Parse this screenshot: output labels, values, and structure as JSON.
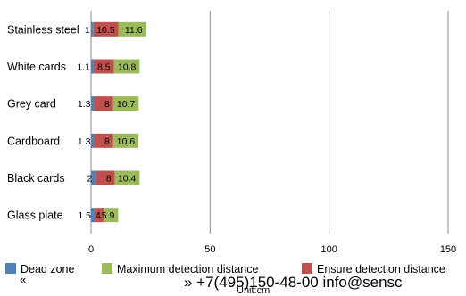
{
  "chart_data": {
    "type": "bar",
    "orientation": "horizontal",
    "stacked": true,
    "categories": [
      "Stainless steel",
      "White cards",
      "Grey card",
      "Cardboard",
      "Black cards",
      "Glass plate"
    ],
    "series": [
      {
        "name": "Dead zone",
        "values": [
          1,
          1.1,
          1.3,
          1.3,
          2,
          1.5
        ],
        "labels": [
          "1",
          "1.1",
          "1.3",
          "1.3",
          "2",
          "1.5"
        ],
        "color": "#4f81bd"
      },
      {
        "name": "Ensure detection distance",
        "values": [
          10.5,
          8.5,
          8,
          8,
          8,
          4
        ],
        "labels": [
          "10.5",
          "8.5",
          "8",
          "8",
          "8",
          "4"
        ],
        "color": "#c0504d"
      },
      {
        "name": "Maximum detection distance",
        "values": [
          11.6,
          10.8,
          10.7,
          10.6,
          10.4,
          5.9
        ],
        "labels": [
          "11.6",
          "10.8",
          "10.7",
          "10.6",
          "10.4",
          "5.9"
        ],
        "color": "#9bbb59"
      }
    ],
    "xlim": [
      0,
      150
    ],
    "xticks": [
      "0",
      "50",
      "100",
      "150"
    ],
    "grid": "vertical",
    "legend": {
      "placement": "bottom",
      "order": [
        "Dead zone",
        "Maximum detection distance",
        "Ensure detection distance"
      ]
    },
    "xlabel": "Unit:cm"
  },
  "footer": {
    "left_text": "«",
    "right_text": "» +7(495)150-48-00 info@sensc"
  }
}
